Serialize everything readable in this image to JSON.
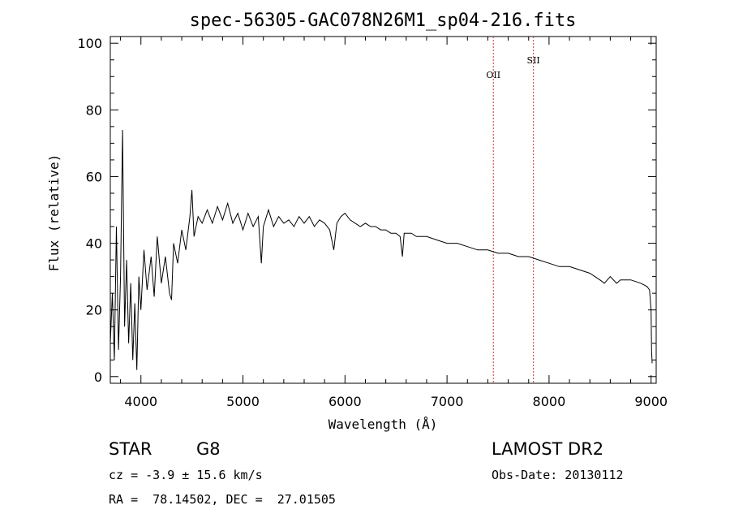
{
  "chart_data": {
    "type": "line",
    "title": "spec-56305-GAC078N26M1_sp04-216.fits",
    "xlabel": "Wavelength (Å)",
    "ylabel": "Flux (relative)",
    "xlim": [
      3700,
      9050
    ],
    "ylim": [
      -2,
      102
    ],
    "xticks": [
      4000,
      5000,
      6000,
      7000,
      8000,
      9000
    ],
    "yticks": [
      0,
      20,
      40,
      60,
      80,
      100
    ],
    "grid": false,
    "series": [
      {
        "points": [
          [
            3700,
            10
          ],
          [
            3720,
            25
          ],
          [
            3740,
            5
          ],
          [
            3760,
            45
          ],
          [
            3780,
            8
          ],
          [
            3800,
            30
          ],
          [
            3820,
            74
          ],
          [
            3840,
            15
          ],
          [
            3860,
            35
          ],
          [
            3880,
            10
          ],
          [
            3900,
            28
          ],
          [
            3920,
            5
          ],
          [
            3940,
            22
          ],
          [
            3960,
            2
          ],
          [
            3980,
            30
          ],
          [
            4000,
            20
          ],
          [
            4030,
            38
          ],
          [
            4060,
            26
          ],
          [
            4100,
            36
          ],
          [
            4130,
            24
          ],
          [
            4160,
            42
          ],
          [
            4200,
            28
          ],
          [
            4240,
            36
          ],
          [
            4280,
            25
          ],
          [
            4300,
            23
          ],
          [
            4320,
            40
          ],
          [
            4360,
            34
          ],
          [
            4400,
            44
          ],
          [
            4440,
            38
          ],
          [
            4480,
            48
          ],
          [
            4500,
            56
          ],
          [
            4520,
            42
          ],
          [
            4560,
            48
          ],
          [
            4600,
            46
          ],
          [
            4650,
            50
          ],
          [
            4700,
            46
          ],
          [
            4750,
            51
          ],
          [
            4800,
            47
          ],
          [
            4850,
            52
          ],
          [
            4900,
            46
          ],
          [
            4950,
            49
          ],
          [
            5000,
            44
          ],
          [
            5050,
            49
          ],
          [
            5100,
            45
          ],
          [
            5150,
            48
          ],
          [
            5180,
            34
          ],
          [
            5200,
            45
          ],
          [
            5250,
            50
          ],
          [
            5300,
            45
          ],
          [
            5350,
            48
          ],
          [
            5400,
            46
          ],
          [
            5450,
            47
          ],
          [
            5500,
            45
          ],
          [
            5550,
            48
          ],
          [
            5600,
            46
          ],
          [
            5650,
            48
          ],
          [
            5700,
            45
          ],
          [
            5750,
            47
          ],
          [
            5800,
            46
          ],
          [
            5850,
            44
          ],
          [
            5890,
            38
          ],
          [
            5920,
            46
          ],
          [
            5960,
            48
          ],
          [
            6000,
            49
          ],
          [
            6050,
            47
          ],
          [
            6100,
            46
          ],
          [
            6150,
            45
          ],
          [
            6200,
            46
          ],
          [
            6250,
            45
          ],
          [
            6300,
            45
          ],
          [
            6350,
            44
          ],
          [
            6400,
            44
          ],
          [
            6450,
            43
          ],
          [
            6500,
            43
          ],
          [
            6540,
            42
          ],
          [
            6563,
            36
          ],
          [
            6580,
            43
          ],
          [
            6650,
            43
          ],
          [
            6700,
            42
          ],
          [
            6800,
            42
          ],
          [
            6900,
            41
          ],
          [
            7000,
            40
          ],
          [
            7100,
            40
          ],
          [
            7200,
            39
          ],
          [
            7300,
            38
          ],
          [
            7400,
            38
          ],
          [
            7500,
            37
          ],
          [
            7600,
            37
          ],
          [
            7700,
            36
          ],
          [
            7800,
            36
          ],
          [
            7900,
            35
          ],
          [
            8000,
            34
          ],
          [
            8100,
            33
          ],
          [
            8200,
            33
          ],
          [
            8300,
            32
          ],
          [
            8400,
            31
          ],
          [
            8498,
            29
          ],
          [
            8542,
            28
          ],
          [
            8600,
            30
          ],
          [
            8662,
            28
          ],
          [
            8700,
            29
          ],
          [
            8800,
            29
          ],
          [
            8900,
            28
          ],
          [
            8960,
            27
          ],
          [
            8985,
            26
          ],
          [
            9000,
            20
          ],
          [
            9005,
            8
          ],
          [
            9010,
            4
          ]
        ]
      }
    ],
    "lines": [
      {
        "label": "OII",
        "x": 7454,
        "color": "#cc3333"
      },
      {
        "label": "SII",
        "x": 7847,
        "color": "#cc3333"
      }
    ]
  },
  "info": {
    "class_label": "STAR",
    "subclass": "G8",
    "cz": "cz = -3.9 ± 15.6 km/s",
    "radec": "RA =  78.14502, DEC =  27.01505",
    "survey": "LAMOST DR2",
    "obsdate": "Obs-Date: 20130112"
  }
}
